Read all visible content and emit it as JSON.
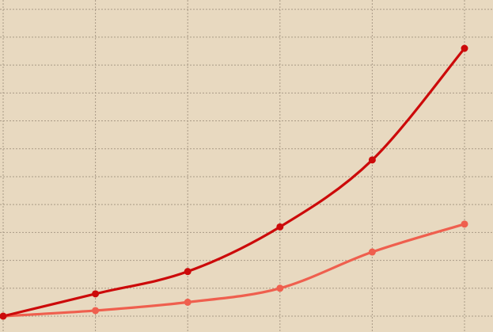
{
  "chart_data": {
    "type": "line",
    "title": "",
    "xlabel": "",
    "ylabel": "",
    "x": [
      0,
      1,
      2,
      3,
      4,
      5
    ],
    "xlim": [
      0,
      5.3
    ],
    "ylim": [
      0,
      11.5
    ],
    "grid": true,
    "legend": "none",
    "series": [
      {
        "color": "#cc0a0a",
        "values": [
          0,
          0.8,
          1.6,
          3.2,
          5.6,
          9.6
        ]
      },
      {
        "color": "#ef5f4e",
        "values": [
          0,
          0.2,
          0.5,
          1.0,
          2.3,
          3.3
        ]
      }
    ]
  },
  "colors": {
    "background": "#e8d9c0",
    "grid": "#a99a86"
  }
}
